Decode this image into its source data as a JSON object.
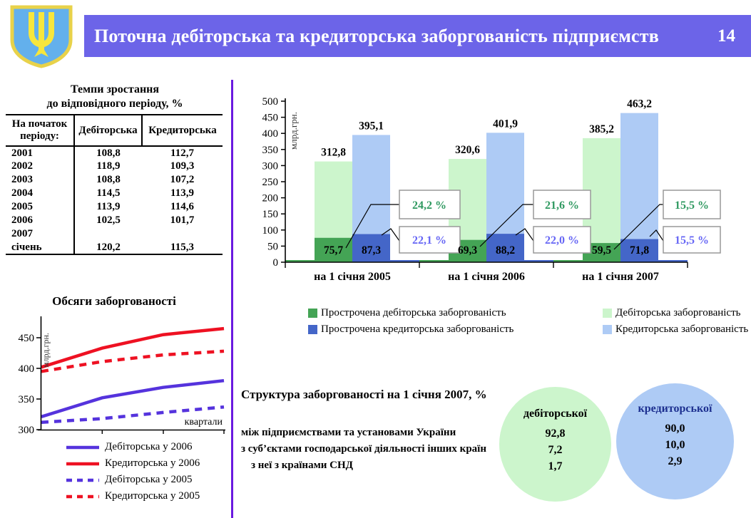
{
  "header": {
    "title": "Поточна дебіторська та кредиторська заборгованість підприємств",
    "page_number": "14",
    "bar_color": "#6C64E8"
  },
  "growth_table": {
    "title_line1": "Темпи зростання",
    "title_line2": "до відповідного періоду, %",
    "columns": {
      "period": "На початок періоду:",
      "debit": "Дебіторська",
      "credit": "Кредиторська"
    },
    "rows": [
      {
        "period": "2001",
        "debit": "108,8",
        "credit": "112,7"
      },
      {
        "period": "2002",
        "debit": "118,9",
        "credit": "109,3"
      },
      {
        "period": "2003",
        "debit": "108,8",
        "credit": "107,2"
      },
      {
        "period": "2004",
        "debit": "114,5",
        "credit": "113,9"
      },
      {
        "period": "2005",
        "debit": "113,9",
        "credit": "114,6"
      },
      {
        "period": "2006",
        "debit": "102,5",
        "credit": "101,7"
      },
      {
        "period": "2007",
        "debit": "",
        "credit": ""
      },
      {
        "period": "січень",
        "debit": "120,2",
        "credit": "115,3"
      }
    ]
  },
  "chart_data": [
    {
      "id": "volumes-line-chart",
      "type": "line",
      "title": "Обсяги заборгованості",
      "ylabel": "млрд.грн.",
      "xlabel": "квартали",
      "ylim": [
        300,
        480
      ],
      "yticks": [
        300,
        350,
        400,
        450
      ],
      "x_note": "quarterly points, 4 per series",
      "series": [
        {
          "name": "Дебіторська у 2006",
          "style": "solid",
          "color": "#5533DD",
          "values": [
            321,
            352,
            369,
            380
          ]
        },
        {
          "name": "Кредиторська у 2006",
          "style": "solid",
          "color": "#EE1122",
          "values": [
            402,
            433,
            455,
            465
          ]
        },
        {
          "name": "Дебіторська у 2005",
          "style": "dashed",
          "color": "#5533DD",
          "values": [
            312,
            318,
            328,
            337
          ]
        },
        {
          "name": "Кредиторська у 2005",
          "style": "dashed",
          "color": "#EE1122",
          "values": [
            395,
            411,
            422,
            428
          ]
        }
      ]
    },
    {
      "id": "debt-bar-chart",
      "type": "bar",
      "ylabel": "млрд.грн.",
      "ylim": [
        0,
        500
      ],
      "ytick_step": 50,
      "categories": [
        "на 1 січня 2005",
        "на 1 січня 2006",
        "на 1 січня 2007"
      ],
      "series": [
        {
          "name": "Дебіторська заборгованість",
          "color": "#CCF5CC",
          "values": [
            312.8,
            320.6,
            385.2
          ],
          "labels": [
            "312,8",
            "320,6",
            "385,2"
          ]
        },
        {
          "name": "Прострочена дебіторська заборгованість",
          "color": "#44A455",
          "values": [
            75.7,
            69.3,
            59.5
          ],
          "labels": [
            "75,7",
            "69,3",
            "59,5"
          ]
        },
        {
          "name": "Кредиторська заборгованість",
          "color": "#AECBF5",
          "values": [
            395.1,
            401.9,
            463.2
          ],
          "labels": [
            "395,1",
            "401,9",
            "463,2"
          ]
        },
        {
          "name": "Прострочена кредиторська заборгованість",
          "color": "#4466C8",
          "values": [
            87.3,
            88.2,
            71.8
          ],
          "labels": [
            "87,3",
            "88,2",
            "71,8"
          ]
        }
      ],
      "callouts": {
        "debit_share": [
          "24,2 %",
          "21,6 %",
          "15,5 %"
        ],
        "credit_share": [
          "22,1 %",
          "22,0 %",
          "15,5 %"
        ],
        "debit_color": "#2F9960",
        "credit_color": "#6666F5"
      },
      "legend": [
        {
          "label": "Прострочена дебіторська заборгованість",
          "color": "#44A455"
        },
        {
          "label": "Дебіторська заборгованість",
          "color": "#CCF5CC"
        },
        {
          "label": "Прострочена кредиторська заборгованість",
          "color": "#4466C8"
        },
        {
          "label": "Кредиторська заборгованість",
          "color": "#AECBF5"
        }
      ]
    }
  ],
  "structure": {
    "title": "Структура заборгованості на 1 січня 2007, %",
    "rows": [
      "між підприємствами та установами України",
      "з суб’єктами господарської діяльності інших країн",
      "з неї з країнами СНД"
    ],
    "debit_circle": {
      "label": "дебіторської",
      "color": "#CCF5CC",
      "values": [
        "92,8",
        "7,2",
        "1,7"
      ]
    },
    "credit_circle": {
      "label": "кредиторської",
      "color": "#AECBF5",
      "values": [
        "90,0",
        "10,0",
        "2,9"
      ]
    }
  }
}
